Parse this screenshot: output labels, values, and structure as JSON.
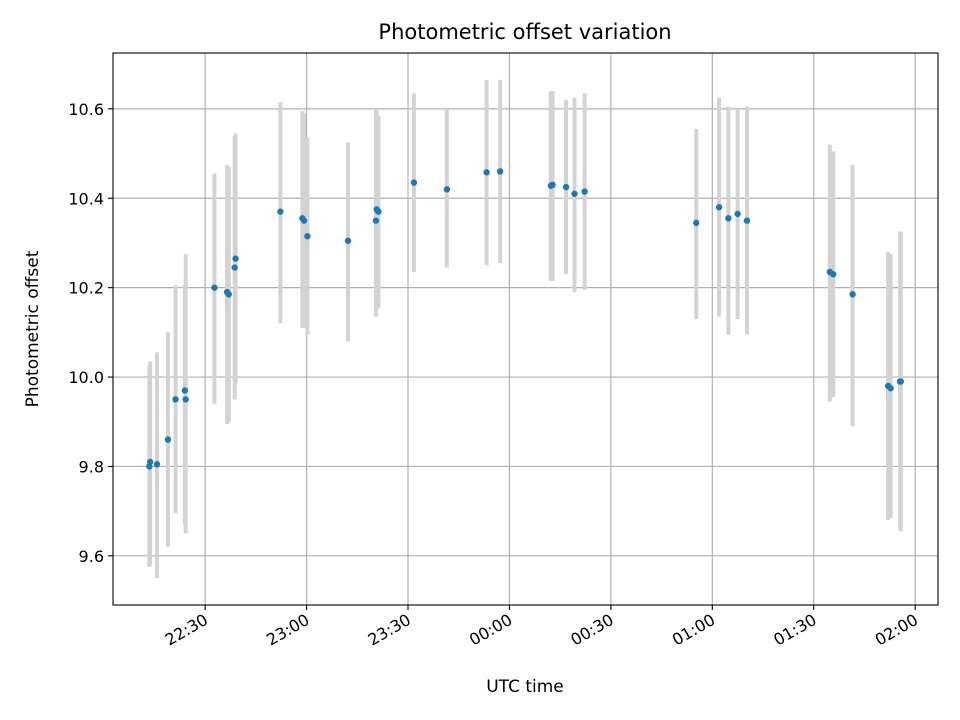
{
  "chart_data": {
    "type": "scatter",
    "title": "Photometric offset variation",
    "xlabel": "UTC time",
    "ylabel": "Photometric offset",
    "x_ticks": [
      "22:30",
      "23:00",
      "23:30",
      "00:00",
      "00:30",
      "01:00",
      "01:30",
      "02:00"
    ],
    "y_ticks": [
      "9.6",
      "9.8",
      "10.0",
      "10.2",
      "10.4",
      "10.6"
    ],
    "ylim": [
      9.49,
      10.725
    ],
    "xlim": [
      "22:02:45",
      "02:06:45"
    ],
    "grid": true,
    "colors": {
      "points": "#1f77b4",
      "errorbars": "#d3d3d3",
      "grid": "#b0b0b0"
    },
    "series": [
      {
        "x": [
          "22:13:30",
          "22:13:45",
          "22:15:45",
          "22:19:00",
          "22:21:15",
          "22:24:00",
          "22:24:15",
          "22:32:45",
          "22:36:30",
          "22:37:00",
          "22:38:45",
          "22:39:00",
          "22:52:15",
          "22:58:45",
          "22:59:15",
          "23:00:15",
          "23:12:15",
          "23:20:30",
          "23:20:45",
          "23:21:15",
          "23:31:45",
          "23:41:30",
          "23:53:15",
          "23:57:15",
          "00:12:15",
          "00:12:45",
          "00:16:45",
          "00:19:15",
          "00:22:15",
          "00:55:15",
          "01:02:00",
          "01:04:45",
          "01:07:30",
          "01:10:15",
          "01:34:45",
          "01:35:45",
          "01:41:30",
          "01:52:00",
          "01:52:45",
          "01:55:30",
          "01:55:45"
        ],
        "y": [
          9.8,
          9.81,
          9.805,
          9.86,
          9.95,
          9.97,
          9.95,
          10.2,
          10.19,
          10.185,
          10.245,
          10.265,
          10.37,
          10.355,
          10.35,
          10.315,
          10.305,
          10.35,
          10.375,
          10.37,
          10.435,
          10.42,
          10.458,
          10.46,
          10.428,
          10.43,
          10.425,
          10.41,
          10.415,
          10.345,
          10.38,
          10.355,
          10.365,
          10.35,
          10.235,
          10.23,
          10.185,
          9.98,
          9.975,
          9.99,
          9.99
        ],
        "yerr_low": [
          9.575,
          9.58,
          9.55,
          9.62,
          9.695,
          9.67,
          9.65,
          9.94,
          9.895,
          9.9,
          9.95,
          9.985,
          10.12,
          10.11,
          10.11,
          10.095,
          10.08,
          10.135,
          10.15,
          10.155,
          10.235,
          10.245,
          10.25,
          10.255,
          10.215,
          10.215,
          10.23,
          10.19,
          10.195,
          10.13,
          10.135,
          10.095,
          10.13,
          10.095,
          9.945,
          9.955,
          9.89,
          9.68,
          9.685,
          9.66,
          9.655
        ],
        "yerr_high": [
          10.025,
          10.035,
          10.055,
          10.1,
          10.205,
          10.205,
          10.275,
          10.455,
          10.475,
          10.47,
          10.54,
          10.545,
          10.615,
          10.595,
          10.59,
          10.535,
          10.525,
          10.6,
          10.595,
          10.585,
          10.635,
          10.6,
          10.665,
          10.665,
          10.64,
          10.64,
          10.62,
          10.625,
          10.635,
          10.555,
          10.625,
          10.605,
          10.6,
          10.605,
          10.52,
          10.505,
          10.475,
          10.28,
          10.275,
          10.325,
          10.325
        ]
      }
    ]
  }
}
